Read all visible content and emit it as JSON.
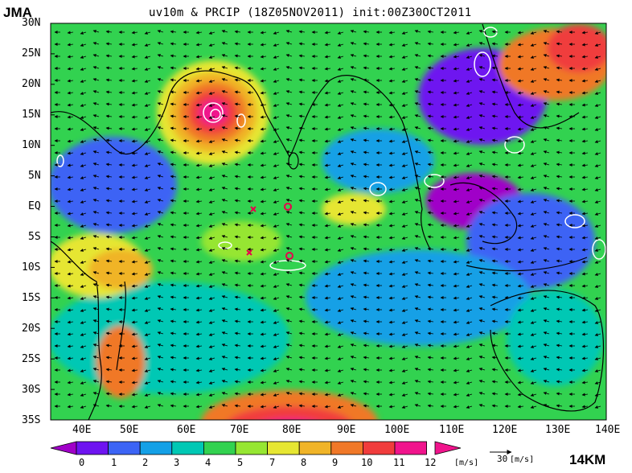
{
  "header": {
    "org": "JMA",
    "title": "uv10m & PRCIP (18Z05NOV2011) init:00Z30OCT2011"
  },
  "map": {
    "lat_labels": [
      "30N",
      "25N",
      "20N",
      "15N",
      "10N",
      "5N",
      "EQ",
      "5S",
      "10S",
      "15S",
      "20S",
      "25S",
      "30S",
      "35S"
    ],
    "lon_labels": [
      "40E",
      "50E",
      "60E",
      "70E",
      "80E",
      "90E",
      "100E",
      "110E",
      "120E",
      "130E",
      "140E"
    ],
    "colors": {
      "land_outline": "#000000",
      "precip_contour": "#ffffff",
      "storm_mark": "#e8004c"
    }
  },
  "colorbar": {
    "ticks": [
      "0",
      "1",
      "2",
      "3",
      "4",
      "5",
      "7",
      "8",
      "9",
      "10",
      "11",
      "12"
    ],
    "unit": "[m/s]",
    "colors": [
      "#a000c8",
      "#6e14f0",
      "#3c64f5",
      "#14a0e6",
      "#00c8b4",
      "#32d250",
      "#96e632",
      "#e6e632",
      "#f0b428",
      "#f07828",
      "#f03c3c",
      "#f0148c"
    ]
  },
  "reference_vector": {
    "value": "30",
    "unit": "[m/s]"
  },
  "footer": {
    "resolution": "14KM"
  }
}
